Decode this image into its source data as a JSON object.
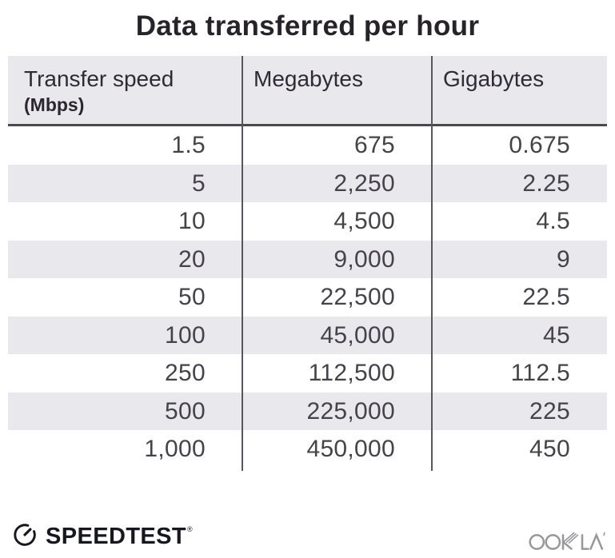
{
  "title": "Data transferred per hour",
  "table": {
    "columns": [
      {
        "label": "Transfer speed",
        "sublabel": "(Mbps)"
      },
      {
        "label": "Megabytes",
        "sublabel": ""
      },
      {
        "label": "Gigabytes",
        "sublabel": ""
      }
    ],
    "rows": [
      [
        "1.5",
        "675",
        "0.675"
      ],
      [
        "5",
        "2,250",
        "2.25"
      ],
      [
        "10",
        "4,500",
        "4.5"
      ],
      [
        "20",
        "9,000",
        "9"
      ],
      [
        "50",
        "22,500",
        "22.5"
      ],
      [
        "100",
        "45,000",
        "45"
      ],
      [
        "250",
        "112,500",
        "112.5"
      ],
      [
        "500",
        "225,000",
        "225"
      ],
      [
        "1,000",
        "450,000",
        "450"
      ]
    ]
  },
  "footer": {
    "speedtest_label": "SPEEDTEST",
    "speedtest_trademark": "®",
    "ookla_label": "OOKLA",
    "ookla_mark": "’"
  },
  "colors": {
    "background": "#ffffff",
    "header_bg": "#e9e8ec",
    "row_alt_bg": "#e9e8ec",
    "header_border": "#4a494e",
    "column_divider": "#58565c",
    "title_text": "#262429",
    "header_text": "#2e2c32",
    "cell_text": "#454349",
    "speedtest_logo": "#17171f",
    "ookla_logo": "#98979b"
  },
  "chart_data": {
    "type": "table",
    "title": "Data transferred per hour",
    "columns": [
      "Transfer speed (Mbps)",
      "Megabytes",
      "Gigabytes"
    ],
    "rows": [
      [
        1.5,
        675,
        0.675
      ],
      [
        5,
        2250,
        2.25
      ],
      [
        10,
        4500,
        4.5
      ],
      [
        20,
        9000,
        9
      ],
      [
        50,
        22500,
        22.5
      ],
      [
        100,
        45000,
        45
      ],
      [
        250,
        112500,
        112.5
      ],
      [
        500,
        225000,
        225
      ],
      [
        1000,
        450000,
        450
      ]
    ]
  }
}
